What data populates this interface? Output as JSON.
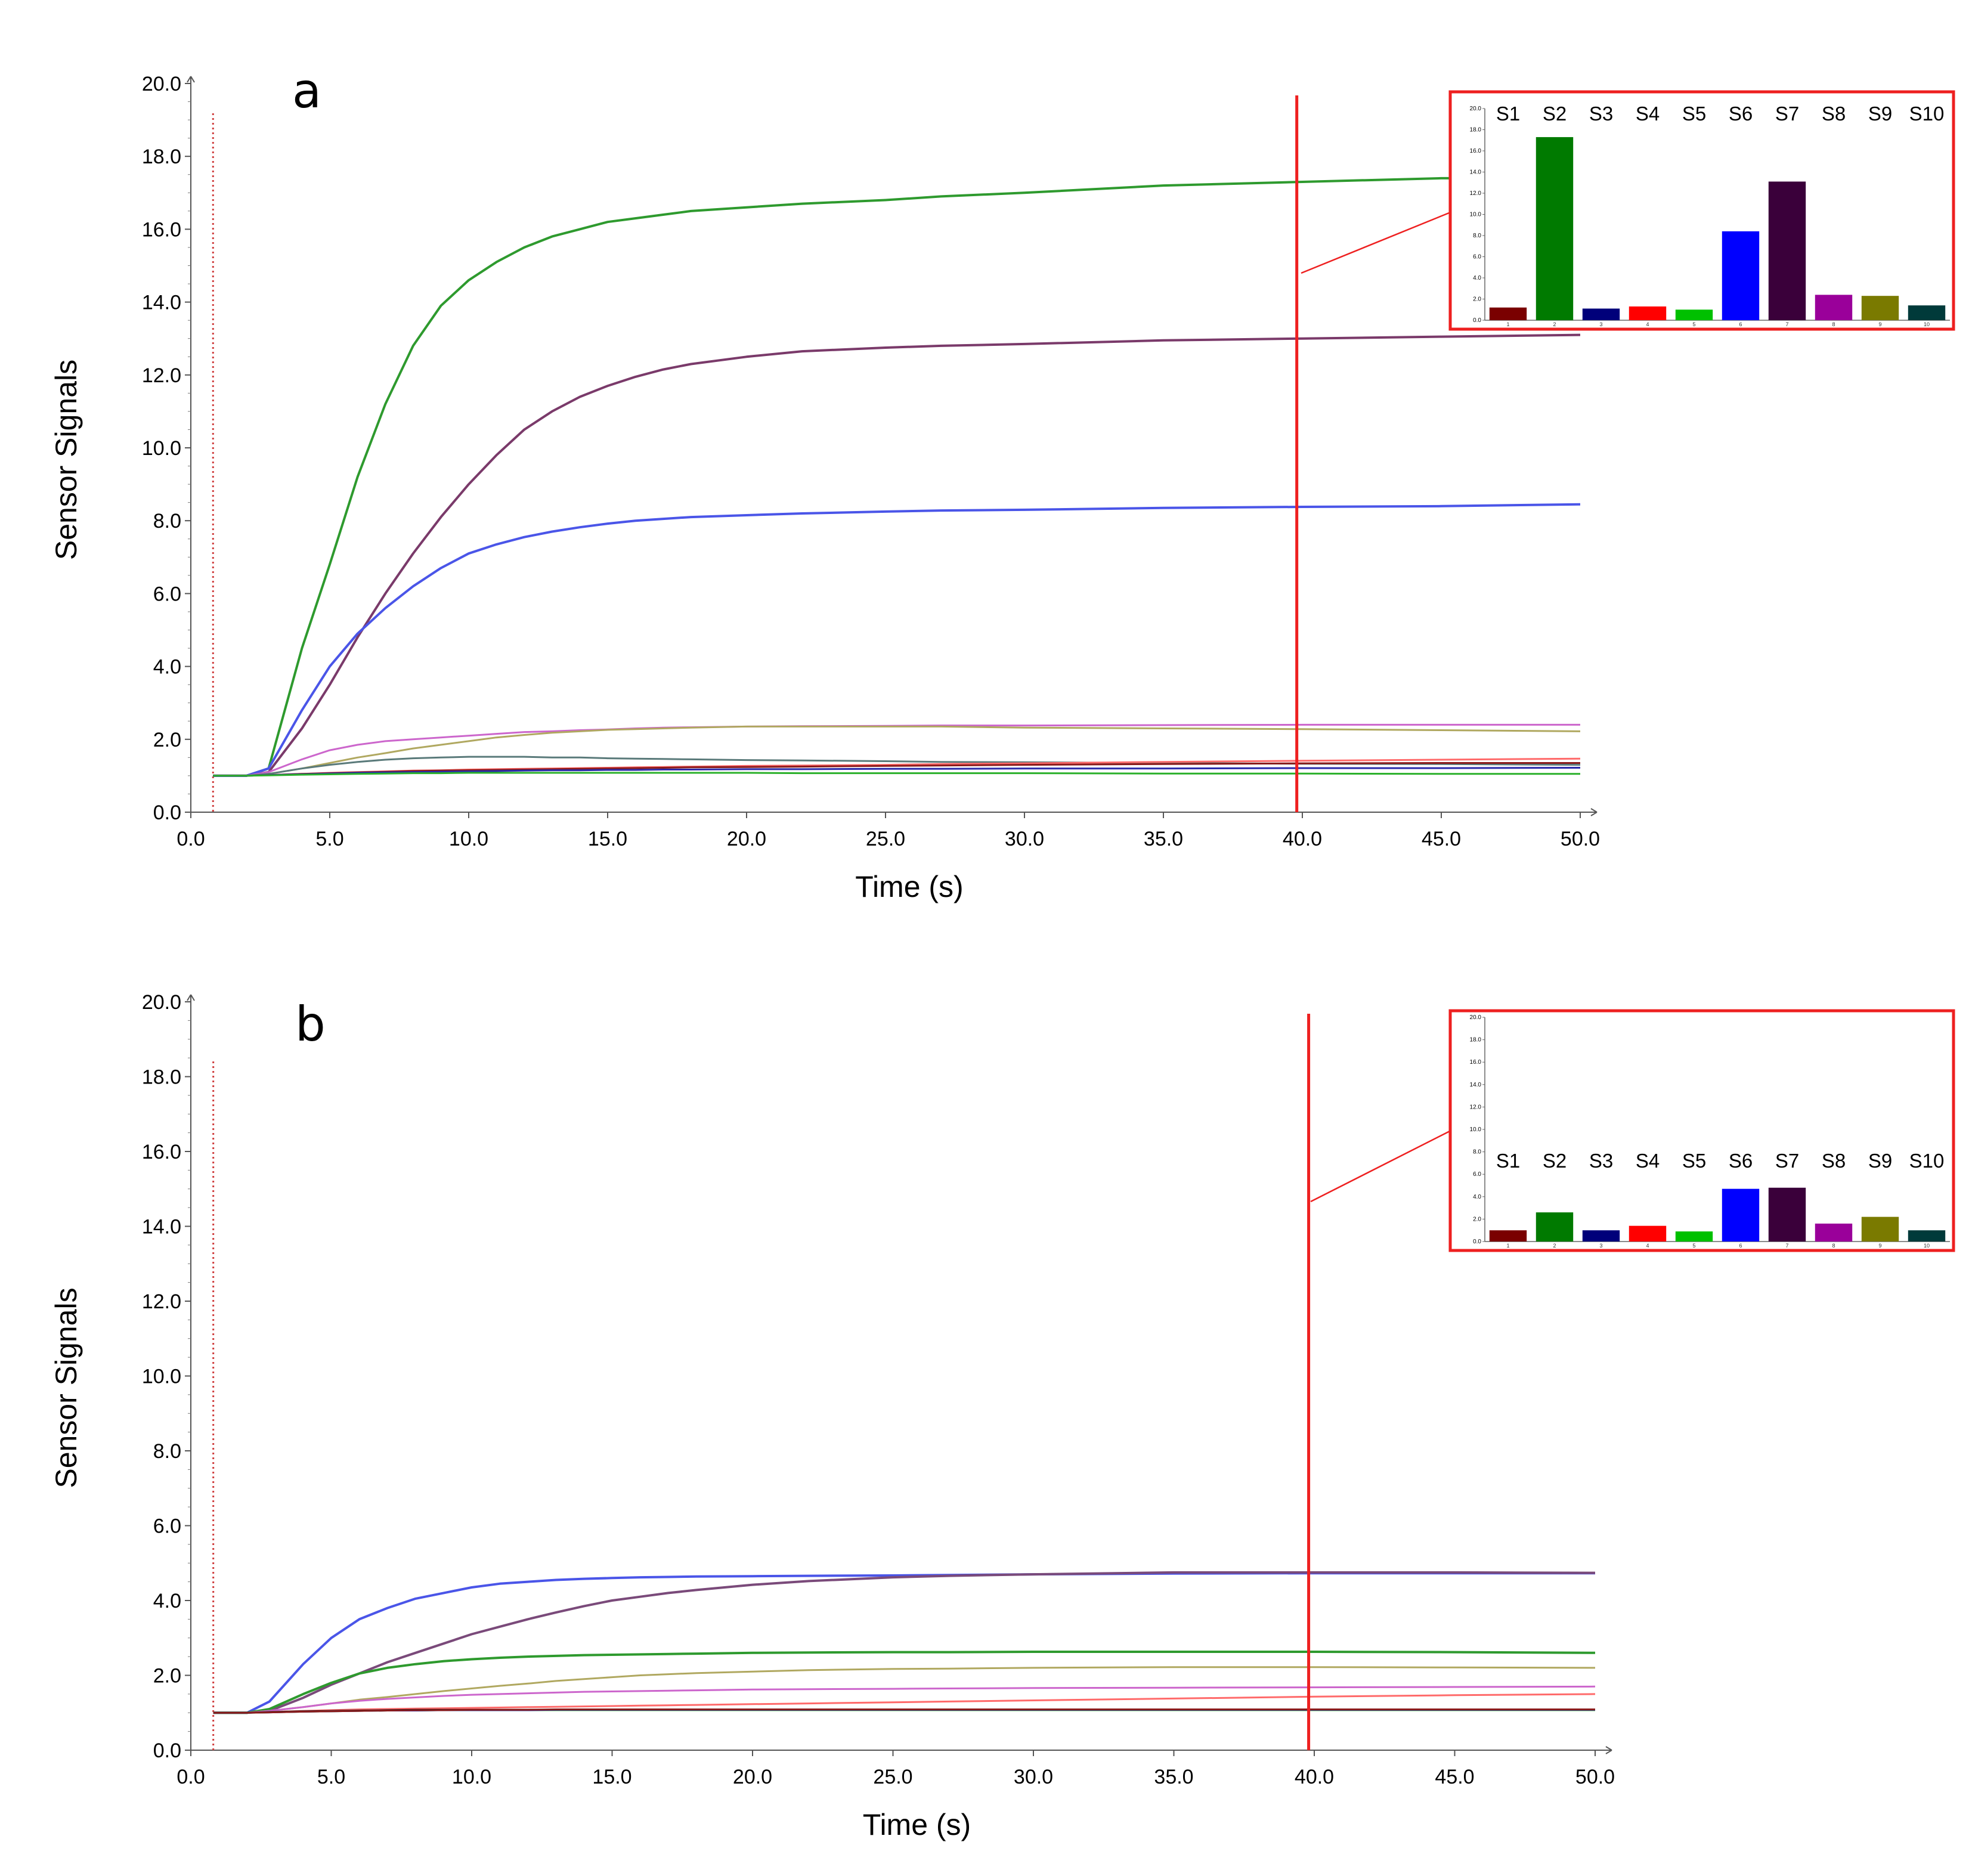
{
  "chart_data": [
    {
      "type": "line",
      "panel": "a",
      "xlabel": "Time (s)",
      "ylabel": "Sensor Signals",
      "xlim": [
        0,
        50
      ],
      "ylim": [
        0,
        20
      ],
      "x_ticks": [
        "0.0",
        "5.0",
        "10.0",
        "15.0",
        "20.0",
        "25.0",
        "30.0",
        "35.0",
        "40.0",
        "45.0",
        "50.0"
      ],
      "y_ticks": [
        "0.0",
        "2.0",
        "4.0",
        "6.0",
        "8.0",
        "10.0",
        "12.0",
        "14.0",
        "16.0",
        "18.0",
        "20.0"
      ],
      "injection_marker_x": 0.8,
      "sample_marker_x": 39.8,
      "x": [
        0.8,
        2.0,
        2.8,
        4.0,
        5.0,
        6.0,
        7.0,
        8.0,
        9.0,
        10.0,
        11.0,
        12.0,
        13.0,
        14.0,
        15.0,
        16.0,
        17.0,
        18.0,
        20.0,
        22.0,
        25.0,
        27.0,
        30.0,
        35.0,
        40.0,
        45.0,
        50.0
      ],
      "series": [
        {
          "color": "#2e9a2e",
          "values": [
            1.0,
            1.0,
            1.2,
            4.5,
            6.8,
            9.2,
            11.2,
            12.8,
            13.9,
            14.6,
            15.1,
            15.5,
            15.8,
            16.0,
            16.2,
            16.3,
            16.4,
            16.5,
            16.6,
            16.7,
            16.8,
            16.9,
            17.0,
            17.2,
            17.3,
            17.4,
            17.4
          ]
        },
        {
          "color": "#7a3a6a",
          "values": [
            1.0,
            1.0,
            1.1,
            2.3,
            3.5,
            4.8,
            6.0,
            7.1,
            8.1,
            9.0,
            9.8,
            10.5,
            11.0,
            11.4,
            11.7,
            11.95,
            12.15,
            12.3,
            12.5,
            12.65,
            12.75,
            12.8,
            12.85,
            12.95,
            13.0,
            13.05,
            13.1
          ]
        },
        {
          "color": "#4a55e8",
          "values": [
            1.0,
            1.0,
            1.2,
            2.8,
            4.0,
            4.9,
            5.6,
            6.2,
            6.7,
            7.1,
            7.35,
            7.55,
            7.7,
            7.82,
            7.92,
            8.0,
            8.05,
            8.1,
            8.15,
            8.2,
            8.25,
            8.28,
            8.3,
            8.35,
            8.38,
            8.4,
            8.45
          ]
        },
        {
          "color": "#cc66cc",
          "values": [
            1.0,
            1.0,
            1.1,
            1.45,
            1.7,
            1.85,
            1.95,
            2.0,
            2.05,
            2.1,
            2.15,
            2.2,
            2.22,
            2.25,
            2.27,
            2.3,
            2.32,
            2.33,
            2.35,
            2.36,
            2.37,
            2.38,
            2.38,
            2.39,
            2.4,
            2.4,
            2.4
          ]
        },
        {
          "color": "#b0a860",
          "values": [
            1.0,
            1.0,
            1.05,
            1.2,
            1.35,
            1.5,
            1.62,
            1.75,
            1.85,
            1.95,
            2.05,
            2.12,
            2.18,
            2.22,
            2.26,
            2.28,
            2.3,
            2.32,
            2.35,
            2.35,
            2.35,
            2.35,
            2.32,
            2.3,
            2.28,
            2.25,
            2.22
          ]
        },
        {
          "color": "#5a7a7a",
          "values": [
            1.0,
            1.0,
            1.05,
            1.2,
            1.3,
            1.38,
            1.44,
            1.48,
            1.5,
            1.52,
            1.52,
            1.52,
            1.5,
            1.5,
            1.48,
            1.47,
            1.46,
            1.45,
            1.43,
            1.42,
            1.4,
            1.38,
            1.37,
            1.35,
            1.33,
            1.32,
            1.3
          ]
        },
        {
          "color": "#ff6a6a",
          "values": [
            1.0,
            1.0,
            1.02,
            1.05,
            1.08,
            1.1,
            1.12,
            1.14,
            1.15,
            1.17,
            1.18,
            1.19,
            1.2,
            1.21,
            1.22,
            1.23,
            1.24,
            1.25,
            1.27,
            1.28,
            1.3,
            1.32,
            1.34,
            1.38,
            1.41,
            1.44,
            1.47
          ]
        },
        {
          "color": "#8a1a1a",
          "values": [
            1.0,
            1.0,
            1.02,
            1.05,
            1.07,
            1.09,
            1.11,
            1.13,
            1.14,
            1.15,
            1.16,
            1.17,
            1.18,
            1.19,
            1.2,
            1.21,
            1.22,
            1.23,
            1.24,
            1.25,
            1.27,
            1.28,
            1.3,
            1.32,
            1.34,
            1.35,
            1.35
          ]
        },
        {
          "color": "#2a2aaa",
          "values": [
            1.0,
            1.0,
            1.02,
            1.04,
            1.06,
            1.08,
            1.09,
            1.1,
            1.11,
            1.12,
            1.13,
            1.14,
            1.15,
            1.15,
            1.16,
            1.16,
            1.17,
            1.17,
            1.18,
            1.18,
            1.19,
            1.19,
            1.2,
            1.2,
            1.21,
            1.21,
            1.22
          ]
        },
        {
          "color": "#2ab02a",
          "values": [
            1.0,
            1.0,
            1.01,
            1.03,
            1.04,
            1.05,
            1.06,
            1.07,
            1.07,
            1.08,
            1.08,
            1.08,
            1.08,
            1.08,
            1.08,
            1.08,
            1.08,
            1.08,
            1.08,
            1.07,
            1.07,
            1.07,
            1.07,
            1.06,
            1.06,
            1.05,
            1.05
          ]
        }
      ],
      "inset": {
        "type": "bar",
        "categories": [
          "S1",
          "S2",
          "S3",
          "S4",
          "S5",
          "S6",
          "S7",
          "S8",
          "S9",
          "S10"
        ],
        "index_labels": [
          "1",
          "2",
          "3",
          "4",
          "5",
          "6",
          "7",
          "8",
          "9",
          "10"
        ],
        "values": [
          1.2,
          17.3,
          1.1,
          1.3,
          1.0,
          8.4,
          13.1,
          2.4,
          2.3,
          1.4
        ],
        "colors": [
          "#7a0000",
          "#007a00",
          "#00007a",
          "#ff0000",
          "#00c000",
          "#0000ff",
          "#3a003a",
          "#9a009a",
          "#7a7a00",
          "#003a3a"
        ],
        "ylim": [
          0,
          20
        ],
        "y_ticks": [
          "0.0",
          "2.0",
          "4.0",
          "6.0",
          "8.0",
          "10.0",
          "12.0",
          "14.0",
          "16.0",
          "18.0",
          "20.0"
        ]
      }
    },
    {
      "type": "line",
      "panel": "b",
      "xlabel": "Time (s)",
      "ylabel": "Sensor Signals",
      "xlim": [
        0,
        50
      ],
      "ylim": [
        0,
        20
      ],
      "x_ticks": [
        "0.0",
        "5.0",
        "10.0",
        "15.0",
        "20.0",
        "25.0",
        "30.0",
        "35.0",
        "40.0",
        "45.0",
        "50.0"
      ],
      "y_ticks": [
        "0.0",
        "2.0",
        "4.0",
        "6.0",
        "8.0",
        "10.0",
        "12.0",
        "14.0",
        "16.0",
        "18.0",
        "20.0"
      ],
      "injection_marker_x": 0.8,
      "sample_marker_x": 39.8,
      "x": [
        0.8,
        2.0,
        2.8,
        4.0,
        5.0,
        6.0,
        7.0,
        8.0,
        9.0,
        10.0,
        11.0,
        12.0,
        13.0,
        14.0,
        15.0,
        16.0,
        17.0,
        18.0,
        20.0,
        22.0,
        25.0,
        27.0,
        30.0,
        35.0,
        40.0,
        45.0,
        50.0
      ],
      "series": [
        {
          "color": "#4a55e8",
          "values": [
            1.0,
            1.0,
            1.3,
            2.3,
            3.0,
            3.5,
            3.8,
            4.05,
            4.2,
            4.35,
            4.45,
            4.5,
            4.55,
            4.58,
            4.6,
            4.62,
            4.63,
            4.64,
            4.65,
            4.66,
            4.67,
            4.68,
            4.7,
            4.72,
            4.73,
            4.73,
            4.73
          ]
        },
        {
          "color": "#7a4a7a",
          "values": [
            1.0,
            1.0,
            1.05,
            1.4,
            1.75,
            2.05,
            2.35,
            2.6,
            2.85,
            3.1,
            3.3,
            3.5,
            3.68,
            3.85,
            4.0,
            4.1,
            4.2,
            4.28,
            4.42,
            4.52,
            4.62,
            4.66,
            4.7,
            4.75,
            4.75,
            4.75,
            4.74
          ]
        },
        {
          "color": "#2e9a2e",
          "values": [
            1.0,
            1.0,
            1.1,
            1.5,
            1.8,
            2.05,
            2.2,
            2.3,
            2.38,
            2.43,
            2.47,
            2.5,
            2.52,
            2.54,
            2.55,
            2.56,
            2.57,
            2.58,
            2.6,
            2.61,
            2.62,
            2.62,
            2.63,
            2.63,
            2.63,
            2.62,
            2.6
          ]
        },
        {
          "color": "#b0a860",
          "values": [
            1.0,
            1.0,
            1.05,
            1.15,
            1.25,
            1.35,
            1.42,
            1.5,
            1.58,
            1.65,
            1.72,
            1.78,
            1.85,
            1.9,
            1.95,
            2.0,
            2.03,
            2.06,
            2.1,
            2.14,
            2.17,
            2.18,
            2.2,
            2.22,
            2.22,
            2.21,
            2.2
          ]
        },
        {
          "color": "#cc66cc",
          "values": [
            1.0,
            1.0,
            1.05,
            1.15,
            1.25,
            1.32,
            1.37,
            1.41,
            1.45,
            1.48,
            1.5,
            1.52,
            1.54,
            1.56,
            1.57,
            1.58,
            1.59,
            1.6,
            1.62,
            1.63,
            1.64,
            1.65,
            1.66,
            1.67,
            1.68,
            1.69,
            1.7
          ]
        },
        {
          "color": "#ff6a6a",
          "values": [
            1.0,
            1.0,
            1.02,
            1.05,
            1.07,
            1.09,
            1.1,
            1.11,
            1.12,
            1.13,
            1.14,
            1.15,
            1.16,
            1.17,
            1.18,
            1.19,
            1.2,
            1.21,
            1.23,
            1.25,
            1.28,
            1.3,
            1.33,
            1.38,
            1.43,
            1.47,
            1.5
          ]
        },
        {
          "color": "#1a1a1a",
          "values": [
            1.0,
            1.0,
            1.02,
            1.04,
            1.05,
            1.06,
            1.07,
            1.08,
            1.08,
            1.08,
            1.08,
            1.08,
            1.08,
            1.08,
            1.08,
            1.08,
            1.08,
            1.08,
            1.08,
            1.08,
            1.08,
            1.08,
            1.08,
            1.08,
            1.08,
            1.08,
            1.08
          ]
        },
        {
          "color": "#2ab02a",
          "values": [
            1.0,
            1.0,
            1.01,
            1.03,
            1.04,
            1.05,
            1.06,
            1.06,
            1.07,
            1.07,
            1.07,
            1.07,
            1.07,
            1.07,
            1.07,
            1.07,
            1.07,
            1.07,
            1.07,
            1.07,
            1.07,
            1.07,
            1.07,
            1.07,
            1.07,
            1.07,
            1.07
          ]
        },
        {
          "color": "#2a2aaa",
          "values": [
            1.0,
            1.0,
            1.01,
            1.03,
            1.04,
            1.05,
            1.06,
            1.06,
            1.07,
            1.07,
            1.07,
            1.07,
            1.08,
            1.08,
            1.08,
            1.08,
            1.08,
            1.08,
            1.08,
            1.08,
            1.08,
            1.08,
            1.08,
            1.08,
            1.08,
            1.08,
            1.08
          ]
        },
        {
          "color": "#8a1a1a",
          "values": [
            1.0,
            1.0,
            1.01,
            1.03,
            1.04,
            1.05,
            1.06,
            1.07,
            1.07,
            1.08,
            1.08,
            1.08,
            1.09,
            1.09,
            1.09,
            1.09,
            1.09,
            1.09,
            1.09,
            1.09,
            1.09,
            1.09,
            1.09,
            1.09,
            1.09,
            1.09,
            1.09
          ]
        }
      ],
      "inset": {
        "type": "bar",
        "categories": [
          "S1",
          "S2",
          "S3",
          "S4",
          "S5",
          "S6",
          "S7",
          "S8",
          "S9",
          "S10"
        ],
        "index_labels": [
          "1",
          "2",
          "3",
          "4",
          "5",
          "6",
          "7",
          "8",
          "9",
          "10"
        ],
        "values": [
          1.0,
          2.6,
          1.0,
          1.4,
          0.9,
          4.7,
          4.8,
          1.6,
          2.2,
          1.0
        ],
        "colors": [
          "#7a0000",
          "#007a00",
          "#00007a",
          "#ff0000",
          "#00c000",
          "#0000ff",
          "#3a003a",
          "#9a009a",
          "#7a7a00",
          "#003a3a"
        ],
        "ylim": [
          0,
          20
        ],
        "y_ticks": [
          "0.0",
          "2.0",
          "4.0",
          "6.0",
          "8.0",
          "10.0",
          "12.0",
          "14.0",
          "16.0",
          "18.0",
          "20.0"
        ]
      }
    }
  ]
}
